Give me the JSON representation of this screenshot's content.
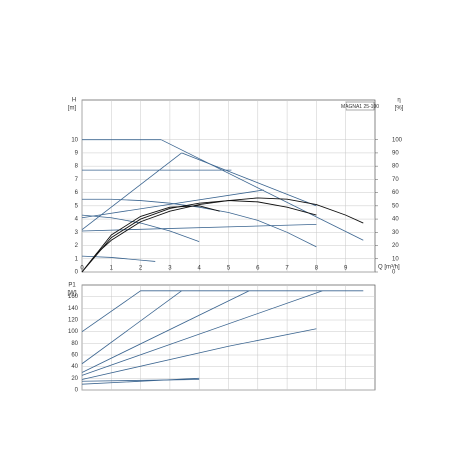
{
  "chart_data": [
    {
      "type": "line",
      "title": "MAGNA1 25-100",
      "ylabel": "H",
      "ylabel_unit": "[m]",
      "y2label": "η",
      "y2label_unit": "[%]",
      "xlabel": "Q [m³/h]",
      "xlim": [
        0,
        10
      ],
      "xticks": [
        0,
        1,
        2,
        3,
        4,
        5,
        6,
        7,
        8,
        9
      ],
      "ylim": [
        0,
        13
      ],
      "yticks": [
        0,
        1,
        2,
        3,
        4,
        5,
        6,
        7,
        8,
        9,
        10
      ],
      "y2lim": [
        0,
        130
      ],
      "y2ticks": [
        0,
        10,
        20,
        30,
        40,
        50,
        60,
        70,
        80,
        90,
        100
      ],
      "grid": true,
      "series": [
        {
          "color": "#3b6590",
          "x": [
            0,
            2.7
          ],
          "values": [
            10,
            10
          ]
        },
        {
          "color": "#3b6590",
          "x": [
            2.7,
            9.6
          ],
          "values": [
            10,
            2.4
          ]
        },
        {
          "color": "#3b6590",
          "x": [
            0,
            3.4
          ],
          "values": [
            3.2,
            9.0
          ]
        },
        {
          "color": "#3b6590",
          "x": [
            3.4,
            8.0
          ],
          "values": [
            9.0,
            5.0
          ]
        },
        {
          "color": "#3b6590",
          "x": [
            0,
            5.1
          ],
          "values": [
            7.7,
            7.7
          ]
        },
        {
          "color": "#3b6590",
          "x": [
            0,
            6.2
          ],
          "values": [
            4.1,
            6.2
          ]
        },
        {
          "color": "#3b6590",
          "x": [
            0,
            8.0
          ],
          "values": [
            3.1,
            3.6
          ]
        },
        {
          "color": "#3b6590",
          "x": [
            0,
            1,
            2,
            3,
            4
          ],
          "values": [
            4.3,
            4.1,
            3.7,
            3.1,
            2.3
          ]
        },
        {
          "color": "#3b6590",
          "x": [
            0,
            1,
            2,
            3,
            4,
            5,
            6,
            7,
            8
          ],
          "values": [
            5.5,
            5.5,
            5.4,
            5.2,
            4.9,
            4.5,
            3.9,
            3.0,
            1.9
          ]
        },
        {
          "color": "#3b6590",
          "x": [
            0,
            1,
            2,
            2.5
          ],
          "values": [
            1.2,
            1.1,
            0.9,
            0.8
          ]
        },
        {
          "color": "#111111",
          "axis": "y2",
          "x": [
            0,
            0.5,
            1,
            2,
            3,
            4,
            5,
            6,
            7,
            8,
            9,
            9.6
          ],
          "values": [
            0,
            14,
            24,
            38,
            46,
            51,
            54,
            56,
            55,
            51,
            43,
            37
          ]
        },
        {
          "color": "#111111",
          "axis": "y2",
          "x": [
            0,
            1,
            2,
            3,
            4,
            5,
            6,
            7,
            8
          ],
          "values": [
            0,
            26,
            40,
            48,
            52,
            54,
            53,
            49,
            43
          ]
        },
        {
          "color": "#111111",
          "axis": "y2",
          "x": [
            0,
            1,
            2,
            3,
            4,
            4.7
          ],
          "values": [
            0,
            28,
            42,
            49,
            50,
            46
          ]
        }
      ]
    },
    {
      "type": "line",
      "ylabel": "P1",
      "ylabel_unit": "[W]",
      "xlim": [
        0,
        10
      ],
      "ylim": [
        0,
        180
      ],
      "yticks": [
        0,
        20,
        40,
        60,
        80,
        100,
        120,
        140,
        160
      ],
      "grid": true,
      "series": [
        {
          "color": "#3b6590",
          "x": [
            0,
            2,
            9.6
          ],
          "values": [
            100,
            170,
            170
          ]
        },
        {
          "color": "#3b6590",
          "x": [
            0,
            3.4
          ],
          "values": [
            45,
            170
          ]
        },
        {
          "color": "#3b6590",
          "x": [
            0,
            5.7
          ],
          "values": [
            30,
            170
          ]
        },
        {
          "color": "#3b6590",
          "x": [
            0,
            8.2
          ],
          "values": [
            25,
            170
          ]
        },
        {
          "color": "#3b6590",
          "x": [
            0,
            5,
            8
          ],
          "values": [
            18,
            75,
            105
          ]
        },
        {
          "color": "#3b6590",
          "x": [
            0,
            4
          ],
          "values": [
            10,
            20
          ]
        },
        {
          "color": "#3b6590",
          "x": [
            0,
            4
          ],
          "values": [
            15,
            18
          ]
        }
      ]
    }
  ]
}
